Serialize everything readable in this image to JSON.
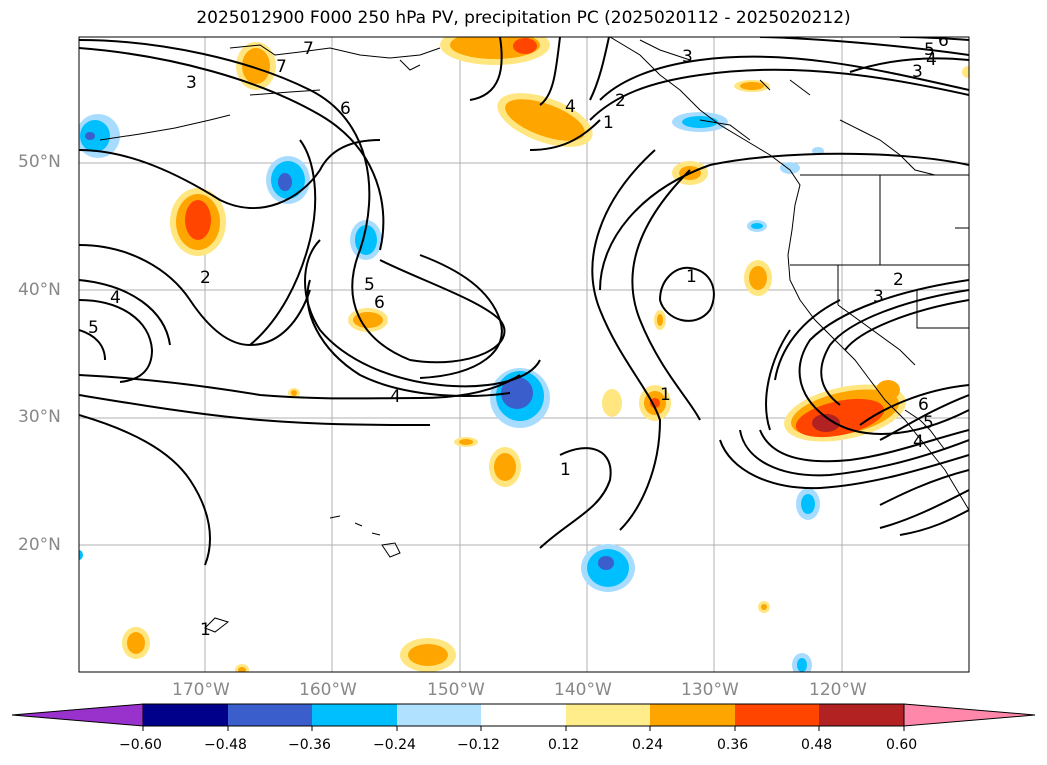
{
  "title": "2025012900 F000 250 hPa PV, precipitation PC (2025020112 - 2025020212)",
  "latitude_labels": [
    "50°N",
    "40°N",
    "30°N",
    "20°N"
  ],
  "longitude_labels": [
    "170°W",
    "160°W",
    "150°W",
    "140°W",
    "130°W",
    "120°W"
  ],
  "colorbar": {
    "ticks": [
      "−0.60",
      "−0.48",
      "−0.36",
      "−0.24",
      "−0.12",
      "0.12",
      "0.24",
      "0.36",
      "0.48",
      "0.60"
    ],
    "colors": [
      "#9932cc",
      "#00008b",
      "#3a5fcd",
      "#00bfff",
      "#b0e2ff",
      "#ffffff",
      "#ffec8b",
      "#ffa500",
      "#ff4500",
      "#b22222",
      "#ff88aa"
    ]
  },
  "contour_labels": [
    "1",
    "2",
    "3",
    "4",
    "5",
    "6",
    "7"
  ],
  "colors": {
    "positive_light": "#ffe680",
    "positive_mid": "#ffa500",
    "positive_high": "#ff4500",
    "positive_max": "#b22222",
    "negative_light": "#a8dcff",
    "negative_mid": "#00bfff",
    "negative_high": "#3a5fcd"
  }
}
